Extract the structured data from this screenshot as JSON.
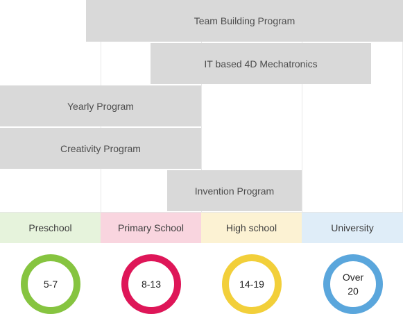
{
  "programs": [
    {
      "label": "Team Building Program",
      "color": "#d9d9d9"
    },
    {
      "label": "IT based 4D Mechatronics",
      "color": "#d9d9d9"
    },
    {
      "label": "Yearly Program",
      "color": "#d9d9d9"
    },
    {
      "label": "Creativity Program",
      "color": "#d9d9d9"
    },
    {
      "label": "Invention Program",
      "color": "#d9d9d9"
    }
  ],
  "levels": [
    {
      "label": "Preschool",
      "background": "#e6f3dc"
    },
    {
      "label": "Primary School",
      "background": "#f9d5df"
    },
    {
      "label": "High school",
      "background": "#fcf2d3"
    },
    {
      "label": "University",
      "background": "#dfedf8"
    }
  ],
  "age_rings": [
    {
      "label": "5-7",
      "color": "#86c440"
    },
    {
      "label": "8-13",
      "color": "#de1658"
    },
    {
      "label": "14-19",
      "color": "#f2cf3a"
    },
    {
      "label": "Over 20",
      "color": "#5aa6dc"
    }
  ]
}
